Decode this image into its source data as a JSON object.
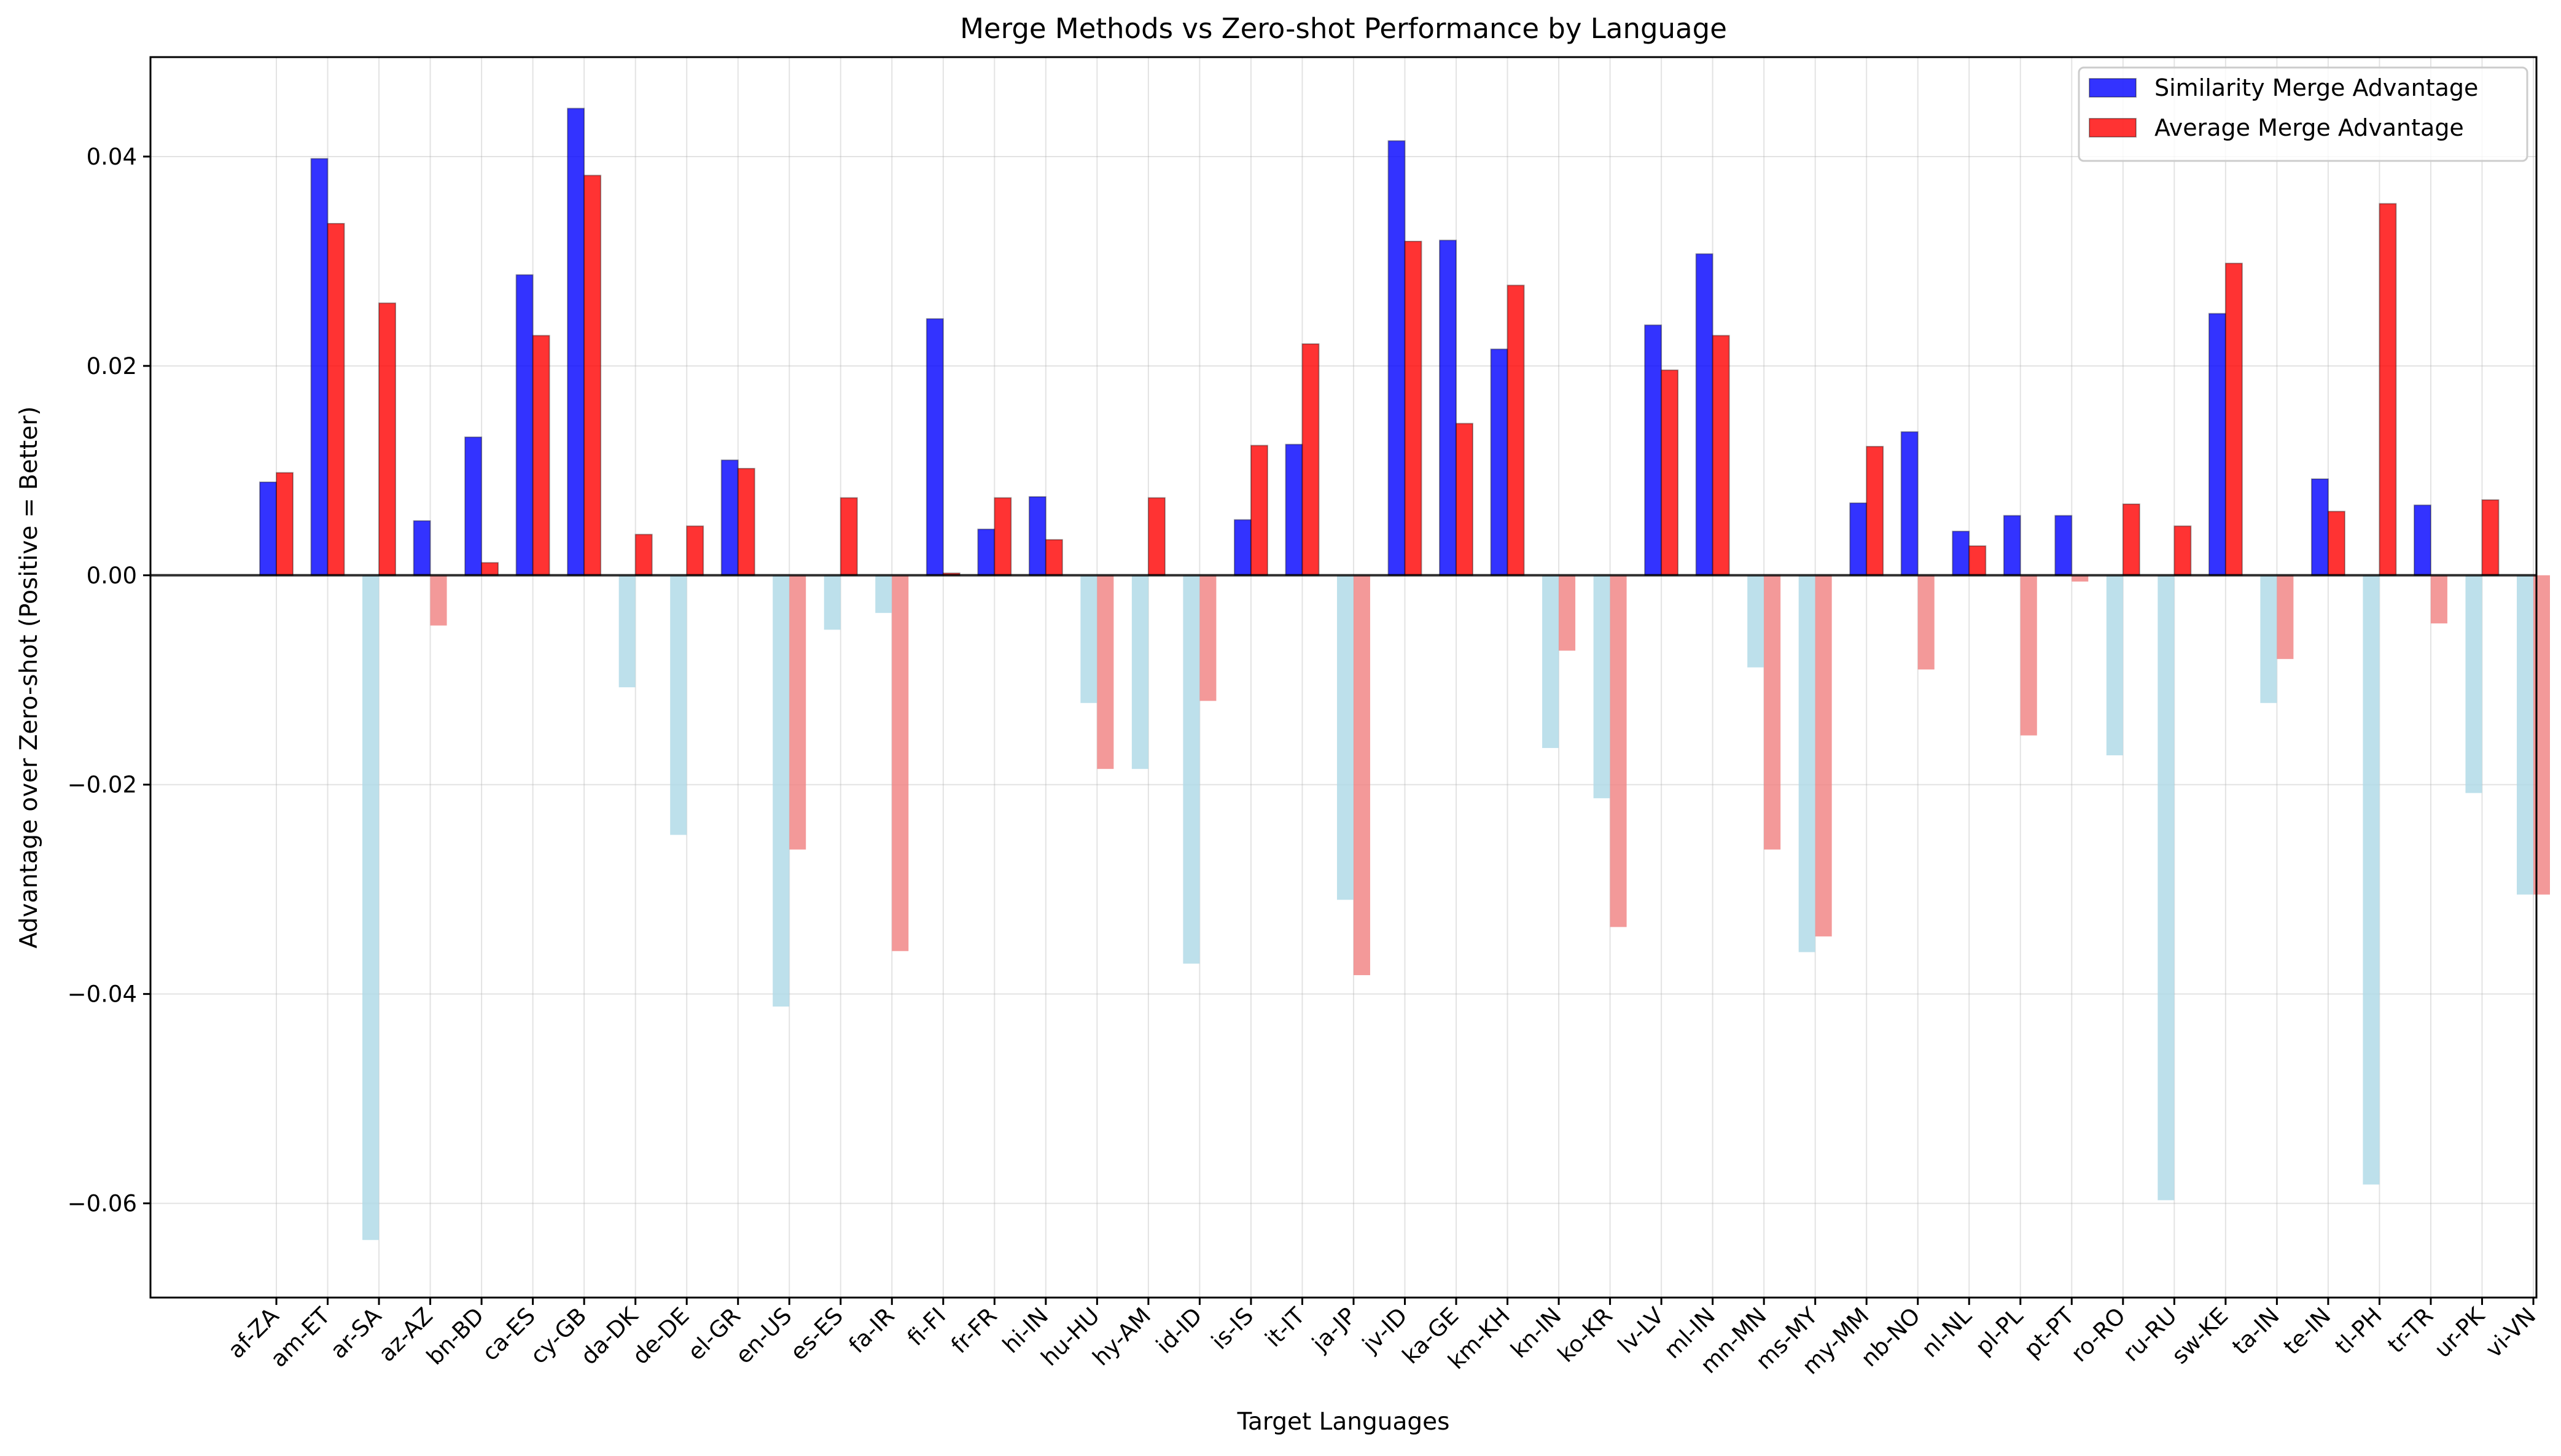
{
  "chart_data": {
    "type": "bar",
    "title": "Merge Methods vs Zero-shot Performance by Language",
    "xlabel": "Target Languages",
    "ylabel": "Advantage over Zero-shot (Positive = Better)",
    "ylim": [
      -0.069,
      0.0495
    ],
    "yticks": [
      -0.06,
      -0.04,
      -0.02,
      0.0,
      0.02,
      0.04
    ],
    "ytick_labels": [
      "−0.06",
      "−0.04",
      "−0.02",
      "0.00",
      "0.02",
      "0.04"
    ],
    "grid": true,
    "legend_position": "top-right",
    "categories": [
      "af-ZA",
      "am-ET",
      "ar-SA",
      "az-AZ",
      "bn-BD",
      "ca-ES",
      "cy-GB",
      "da-DK",
      "de-DE",
      "el-GR",
      "en-US",
      "es-ES",
      "fa-IR",
      "fi-FI",
      "fr-FR",
      "hi-IN",
      "hu-HU",
      "hy-AM",
      "id-ID",
      "is-IS",
      "it-IT",
      "ja-JP",
      "jv-ID",
      "ka-GE",
      "km-KH",
      "kn-IN",
      "ko-KR",
      "lv-LV",
      "ml-IN",
      "mn-MN",
      "ms-MY",
      "my-MM",
      "nb-NO",
      "nl-NL",
      "pl-PL",
      "pt-PT",
      "ro-RO",
      "ru-RU",
      "sw-KE",
      "ta-IN",
      "te-IN",
      "tl-PH",
      "tr-TR",
      "ur-PK",
      "vi-VN"
    ],
    "series": [
      {
        "name": "Similarity Merge Advantage",
        "color": "#0000ff",
        "negative_color": "#add8e6",
        "values": [
          0.0089,
          0.0398,
          -0.0635,
          0.0052,
          0.0132,
          0.0287,
          0.0446,
          -0.0107,
          -0.0248,
          0.011,
          -0.0412,
          -0.0052,
          -0.0036,
          0.0245,
          0.0044,
          0.0075,
          -0.0122,
          -0.0185,
          -0.0371,
          0.0053,
          0.0125,
          -0.031,
          0.0415,
          0.032,
          0.0216,
          -0.0165,
          -0.0213,
          0.0239,
          0.0307,
          -0.0088,
          -0.036,
          0.0069,
          0.0137,
          0.0042,
          0.0057,
          0.0057,
          -0.0172,
          -0.0597,
          0.025,
          -0.0122,
          0.0092,
          -0.0582,
          0.0067,
          -0.0208,
          -0.0305
        ]
      },
      {
        "name": "Average Merge Advantage",
        "color": "#ff0000",
        "negative_color": "#f08080",
        "values": [
          0.0098,
          0.0336,
          0.026,
          -0.0048,
          0.0012,
          0.0229,
          0.0382,
          0.0039,
          0.0047,
          0.0102,
          -0.0262,
          0.0074,
          -0.0359,
          0.0002,
          0.0074,
          0.0034,
          -0.0185,
          0.0074,
          -0.012,
          0.0124,
          0.0221,
          -0.0382,
          0.0319,
          0.0145,
          0.0277,
          -0.0072,
          -0.0336,
          0.0196,
          0.0229,
          -0.0262,
          -0.0345,
          0.0123,
          -0.009,
          0.0028,
          -0.0153,
          -0.0006,
          0.0068,
          0.0047,
          0.0298,
          -0.008,
          0.0061,
          0.0355,
          -0.0046,
          0.0072,
          -0.0305
        ]
      }
    ]
  }
}
